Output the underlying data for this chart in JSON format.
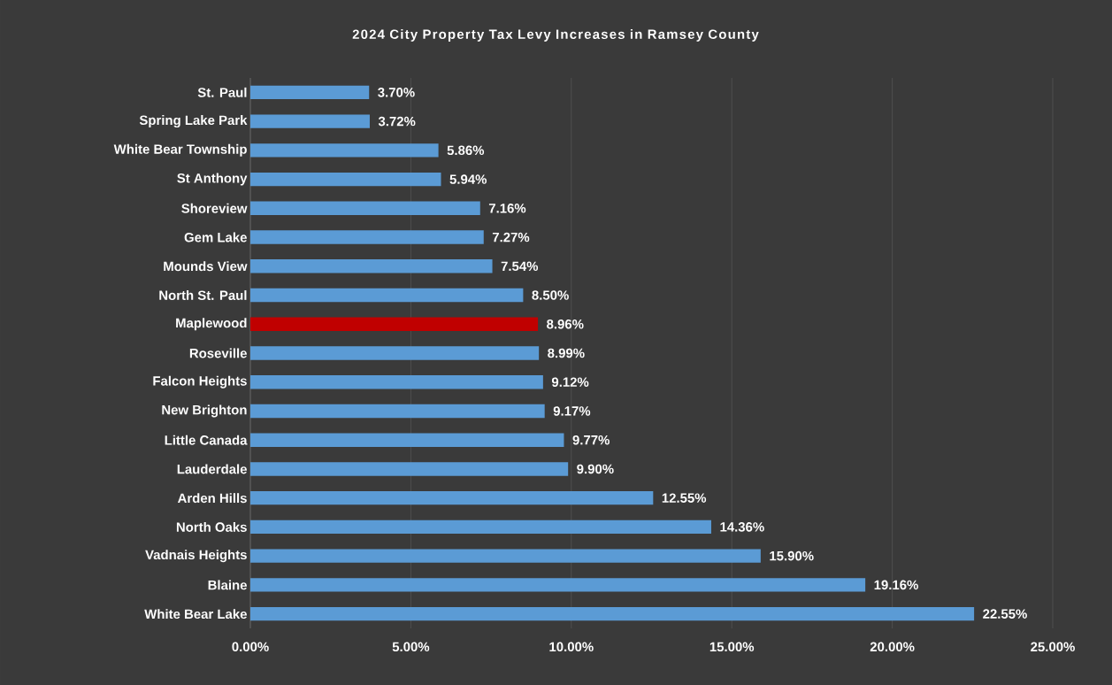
{
  "chart_data": {
    "type": "bar",
    "orientation": "horizontal",
    "title": "2024 City Property Tax Levy Increases in Ramsey County",
    "categories": [
      "St. Paul",
      "Spring Lake Park",
      "White Bear Township",
      "St Anthony",
      "Shoreview",
      "Gem Lake",
      "Mounds View",
      "North St. Paul",
      "Maplewood",
      "Roseville",
      "Falcon Heights",
      "New Brighton",
      "Little Canada",
      "Lauderdale",
      "Arden Hills",
      "North Oaks",
      "Vadnais Heights",
      "Blaine",
      "White Bear Lake"
    ],
    "values": [
      3.7,
      3.72,
      5.86,
      5.94,
      7.16,
      7.27,
      7.54,
      8.5,
      8.96,
      8.99,
      9.12,
      9.17,
      9.77,
      9.9,
      12.55,
      14.36,
      15.9,
      19.16,
      22.55
    ],
    "value_labels": [
      "3.70%",
      "3.72%",
      "5.86%",
      "5.94%",
      "7.16%",
      "7.27%",
      "7.54%",
      "8.50%",
      "8.96%",
      "8.99%",
      "9.12%",
      "9.17%",
      "9.77%",
      "9.90%",
      "12.55%",
      "14.36%",
      "15.90%",
      "19.16%",
      "22.55%"
    ],
    "colors": [
      "#5b9bd5",
      "#5b9bd5",
      "#5b9bd5",
      "#5b9bd5",
      "#5b9bd5",
      "#5b9bd5",
      "#5b9bd5",
      "#5b9bd5",
      "#c00000",
      "#5b9bd5",
      "#5b9bd5",
      "#5b9bd5",
      "#5b9bd5",
      "#5b9bd5",
      "#5b9bd5",
      "#5b9bd5",
      "#5b9bd5",
      "#5b9bd5",
      "#5b9bd5"
    ],
    "xlim": [
      0,
      25
    ],
    "xticks": [
      {
        "value": 0,
        "label": "0.00%"
      },
      {
        "value": 5,
        "label": "5.00%"
      },
      {
        "value": 10,
        "label": "10.00%"
      },
      {
        "value": 15,
        "label": "15.00%"
      },
      {
        "value": 20,
        "label": "20.00%"
      },
      {
        "value": 25,
        "label": "25.00%"
      }
    ],
    "grid": "x"
  }
}
